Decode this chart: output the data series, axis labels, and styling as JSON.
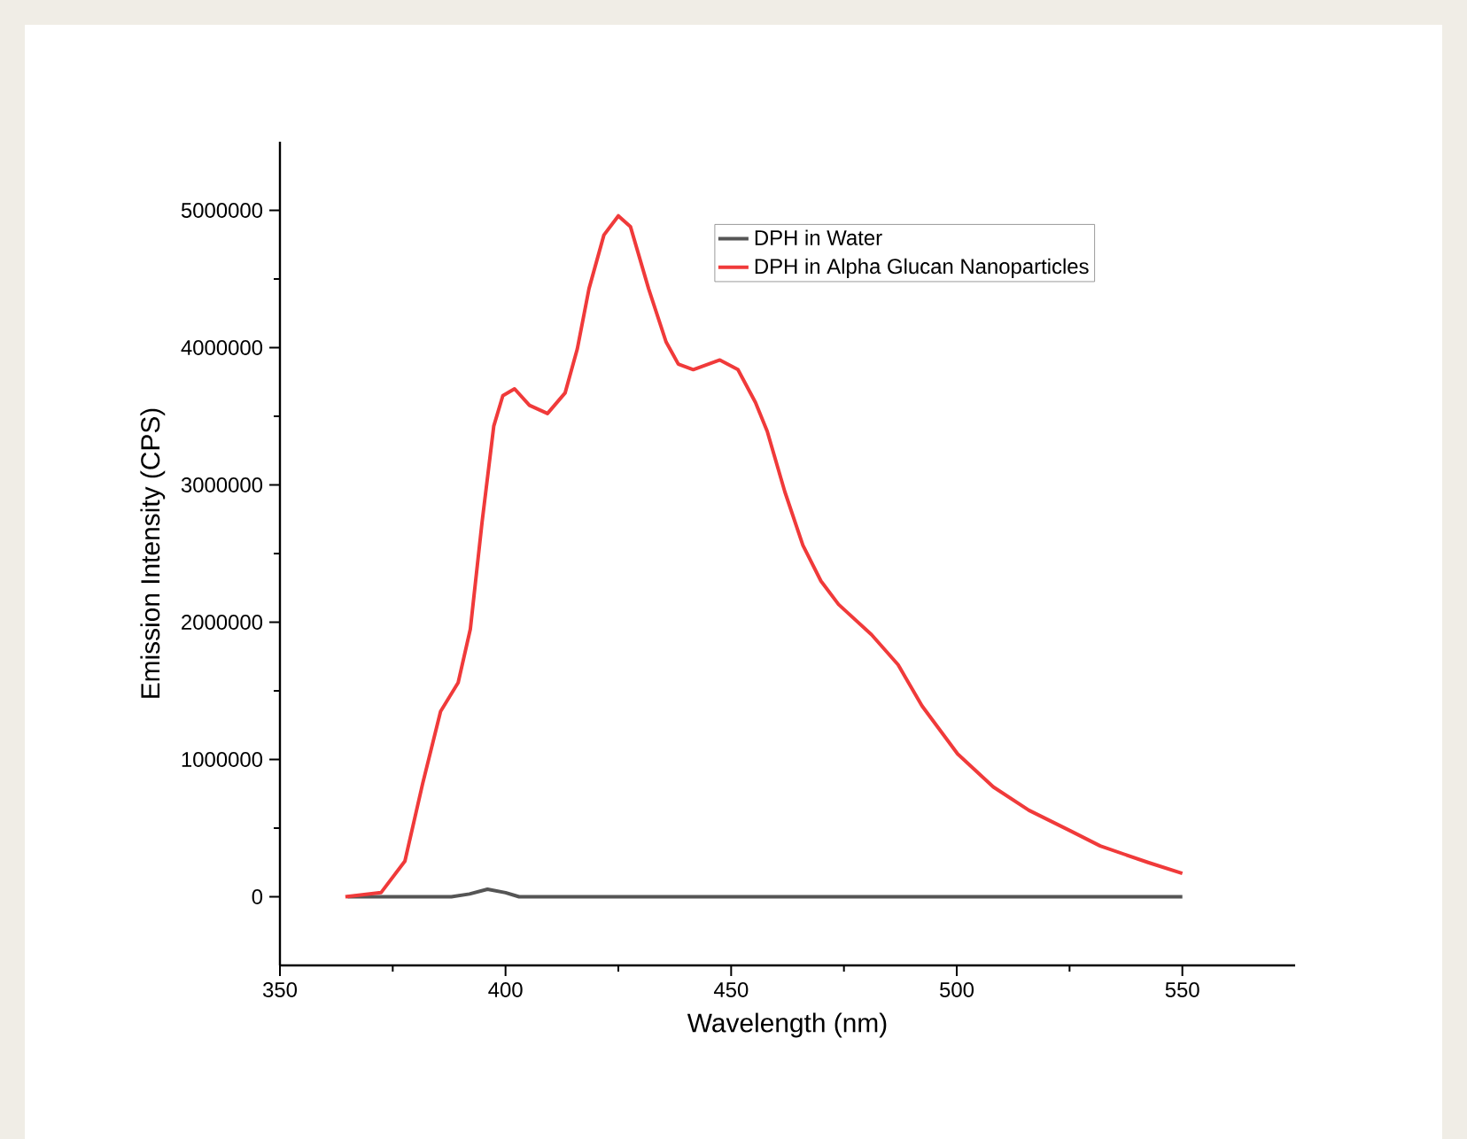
{
  "chart_data": {
    "type": "line",
    "xlabel": "Wavelength (nm)",
    "ylabel": "Emission Intensity (CPS)",
    "xlim": [
      350,
      575
    ],
    "xticks": [
      350,
      400,
      450,
      500,
      550
    ],
    "ylim": [
      -500000,
      5500000
    ],
    "yticks": [
      0,
      1000000,
      2000000,
      3000000,
      4000000,
      5000000
    ],
    "legend": "top right",
    "grid": false,
    "marker": "none",
    "line_style": "solid",
    "series": [
      {
        "name": "DPH in Water",
        "color": "#555555",
        "x": [
          365,
          380,
          388,
          392,
          396,
          400,
          403,
          410,
          430,
          450,
          500,
          550
        ],
        "values": [
          0,
          0,
          0,
          20000,
          55000,
          30000,
          0,
          0,
          0,
          0,
          0,
          0
        ]
      },
      {
        "name": "DPH in Alpha Glucan Nanoparticles",
        "color": "#f03a3a",
        "x": [
          364.5,
          372.4,
          377.7,
          381.6,
          385.6,
          389.5,
          392.2,
          394.8,
          397.4,
          399.4,
          402,
          405.3,
          409.3,
          413.2,
          415.9,
          418.5,
          421.8,
          425,
          427.7,
          431.7,
          435.6,
          438.3,
          441.6,
          447.5,
          451.5,
          455.4,
          458,
          461.9,
          465.9,
          469.9,
          473.8,
          481.1,
          487,
          492.3,
          500.2,
          508.1,
          516,
          525.2,
          531.8,
          542.4,
          550
        ],
        "values": [
          0,
          30000,
          260000,
          820000,
          1350000,
          1560000,
          1950000,
          2730000,
          3430000,
          3650000,
          3700000,
          3580000,
          3520000,
          3670000,
          3990000,
          4430000,
          4820000,
          4960000,
          4880000,
          4430000,
          4040000,
          3880000,
          3840000,
          3910000,
          3840000,
          3600000,
          3390000,
          2950000,
          2560000,
          2300000,
          2130000,
          1910000,
          1690000,
          1390000,
          1040000,
          800000,
          630000,
          480000,
          370000,
          250000,
          170000
        ]
      }
    ]
  }
}
